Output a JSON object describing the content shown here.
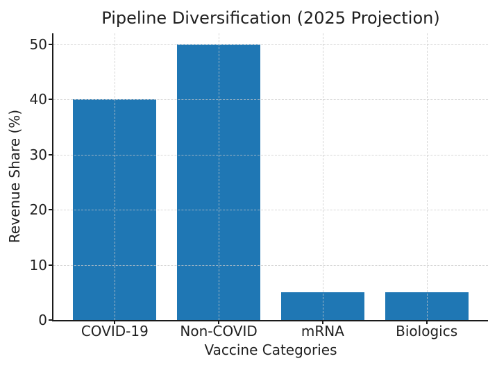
{
  "chart_data": {
    "type": "bar",
    "title": "Pipeline Diversification (2025 Projection)",
    "xlabel": "Vaccine Categories",
    "ylabel": "Revenue Share (%)",
    "categories": [
      "COVID-19",
      "Non-COVID",
      "mRNA",
      "Biologics"
    ],
    "values": [
      40,
      50,
      5,
      5
    ],
    "yticks": [
      0,
      10,
      20,
      30,
      40,
      50
    ],
    "ylim": [
      0,
      52
    ],
    "bar_color": "#1f77b4",
    "grid": true,
    "grid_axis": "both",
    "grid_line_style": "dashed",
    "grid_color": "#c9c9c9",
    "axis_color": "#1a1a1a",
    "text_color": "#1f1f1f",
    "background": "#ffffff",
    "legend": null
  }
}
